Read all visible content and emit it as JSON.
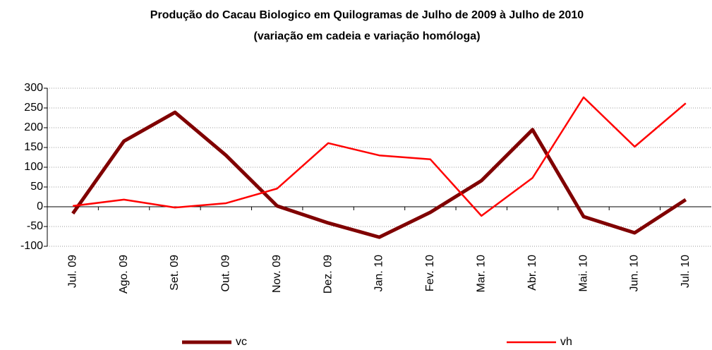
{
  "chart_data": {
    "type": "line",
    "title": "Produção do Cacau Biologico em Quilogramas de Julho de 2009 à Julho de 2010",
    "subtitle": "(variação em cadeia e variação homóloga)",
    "categories": [
      "Jul. 09",
      "Ago. 09",
      "Set. 09",
      "Out. 09",
      "Nov. 09",
      "Dez. 09",
      "Jan. 10",
      "Fev. 10",
      "Mar. 10",
      "Abr. 10",
      "Mai. 10",
      "Jun. 10",
      "Jul. 10"
    ],
    "series": [
      {
        "name": "vc",
        "color": "#800000",
        "values": [
          -17,
          166,
          239,
          130,
          2,
          -41,
          -77,
          -14,
          66,
          195,
          -25,
          -66,
          18
        ]
      },
      {
        "name": "vh",
        "color": "#ff0000",
        "values": [
          2,
          18,
          -2,
          9,
          46,
          161,
          130,
          120,
          -23,
          73,
          277,
          152,
          262
        ]
      }
    ],
    "ylim": [
      -100,
      300
    ],
    "yticks": [
      -100,
      -50,
      0,
      50,
      100,
      150,
      200,
      250,
      300
    ],
    "grid": true,
    "legend": "bottom"
  }
}
